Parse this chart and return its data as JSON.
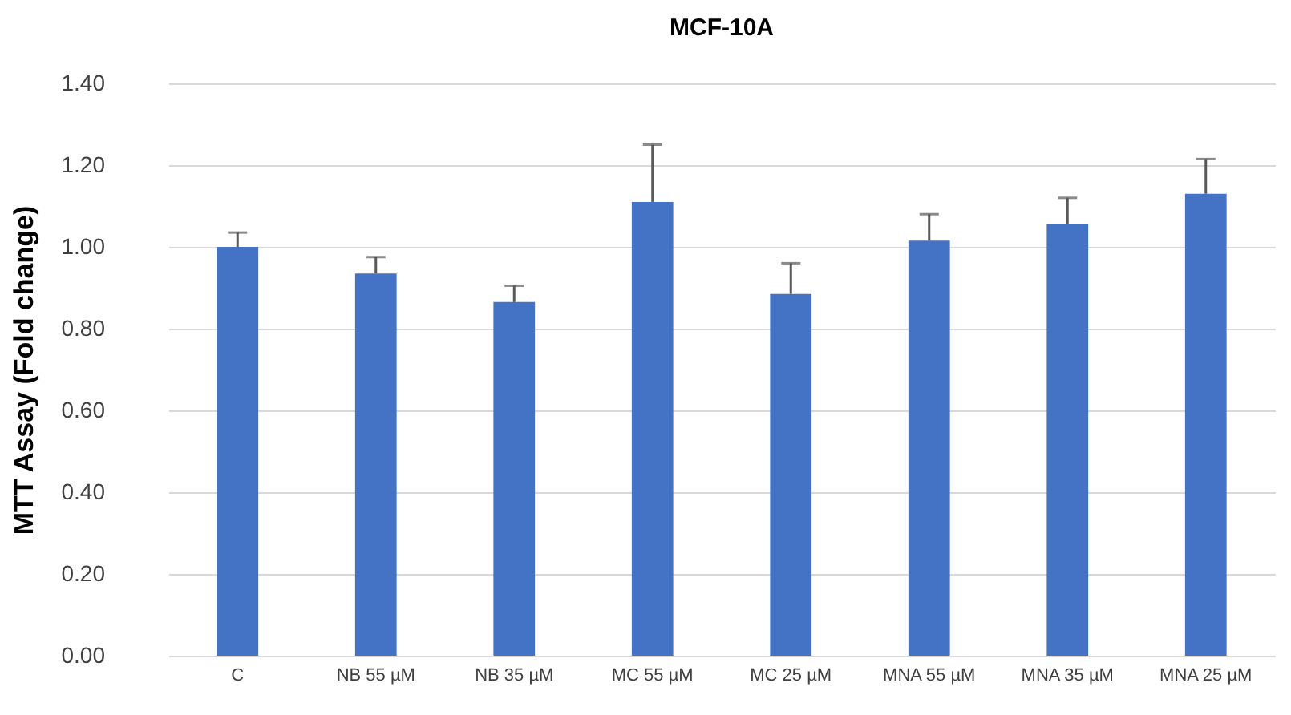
{
  "chart_data": {
    "type": "bar",
    "title": "MCF-10A",
    "ylabel": "MTT Assay (Fold change)",
    "categories": [
      "C",
      "NB 55 µM",
      "NB 35 µM",
      "MC 55 µM",
      "MC 25 µM",
      "MNA 55 µM",
      "MNA 35 µM",
      "MNA 25 µM"
    ],
    "values": [
      1.0,
      0.935,
      0.865,
      1.11,
      0.885,
      1.015,
      1.055,
      1.13
    ],
    "errors": [
      [
        1.0,
        1.035
      ],
      [
        0.935,
        0.975
      ],
      [
        0.865,
        0.905
      ],
      [
        1.11,
        1.25
      ],
      [
        0.885,
        0.96
      ],
      [
        1.015,
        1.08
      ],
      [
        1.055,
        1.12
      ],
      [
        1.13,
        1.215
      ]
    ],
    "color": "#4472c4",
    "ylim": [
      0,
      1.4
    ],
    "yticks": [
      {
        "value": 0,
        "label": "0.00"
      },
      {
        "value": 0.2,
        "label": "0.20"
      },
      {
        "value": 0.4,
        "label": "0.40"
      },
      {
        "value": 0.6,
        "label": "0.60"
      },
      {
        "value": 0.8,
        "label": "0.80"
      },
      {
        "value": 1.0,
        "label": "1.00"
      },
      {
        "value": 1.2,
        "label": "1.20"
      },
      {
        "value": 1.4,
        "label": "1.40"
      }
    ],
    "grid": "y"
  }
}
